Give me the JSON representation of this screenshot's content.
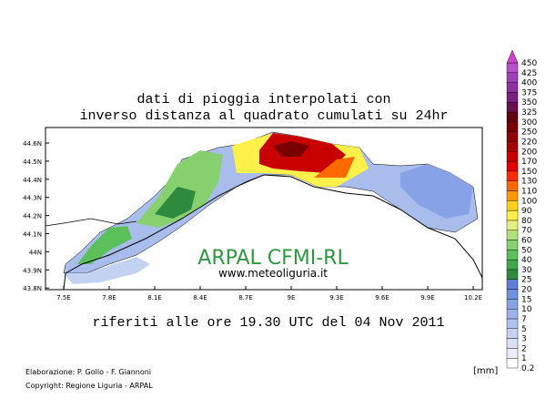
{
  "title": [
    "dati di pioggia interpolati con",
    "inverso distanza al quadrato cumulati su 24hr"
  ],
  "watermark": {
    "name": "ARPAL CFMI-RL",
    "url": "www.meteoliguria.it"
  },
  "subtitle": "riferiti alle ore 19.30 UTC del 04 Nov 2011",
  "map": {
    "lat_labels": [
      "44.6N",
      "44.5N",
      "44.4N",
      "44.3N",
      "44.2N",
      "44.1N",
      "44N",
      "43.9N",
      "43.8N"
    ],
    "lon_labels": [
      "7.5E",
      "7.8E",
      "8.1E",
      "8.4E",
      "8.7E",
      "9E",
      "9.3E",
      "9.6E",
      "9.9E",
      "10.2E"
    ]
  },
  "legend": {
    "unit": "[mm]",
    "labels": [
      "0.2",
      "1",
      "2",
      "3",
      "5",
      "7",
      "10",
      "15",
      "20",
      "25",
      "30",
      "40",
      "50",
      "60",
      "70",
      "80",
      "90",
      "100",
      "110",
      "130",
      "150",
      "170",
      "200",
      "220",
      "250",
      "300",
      "325",
      "350",
      "375",
      "400",
      "425",
      "450"
    ],
    "colors": [
      "#ffffff",
      "#e8eefa",
      "#d6e0f6",
      "#c4d2f2",
      "#b0c2ee",
      "#9cb2ea",
      "#87a2e6",
      "#7290e0",
      "#5e7ed8",
      "#2e8b3e",
      "#3ea84a",
      "#5cc05a",
      "#86d070",
      "#b0e07c",
      "#e6f080",
      "#fff04a",
      "#ffd020",
      "#ff9a00",
      "#ff6a00",
      "#ff2a00",
      "#e60000",
      "#c80000",
      "#a80000",
      "#900000",
      "#780000",
      "#600010",
      "#6a1050",
      "#7a2080",
      "#9030a0",
      "#a040b8",
      "#b850cc",
      "#cc44cc"
    ]
  },
  "credits": [
    "Elaborazione: P. Gollo - F. Giannoni",
    "Copyright: Regione Liguria - ARPAL"
  ]
}
